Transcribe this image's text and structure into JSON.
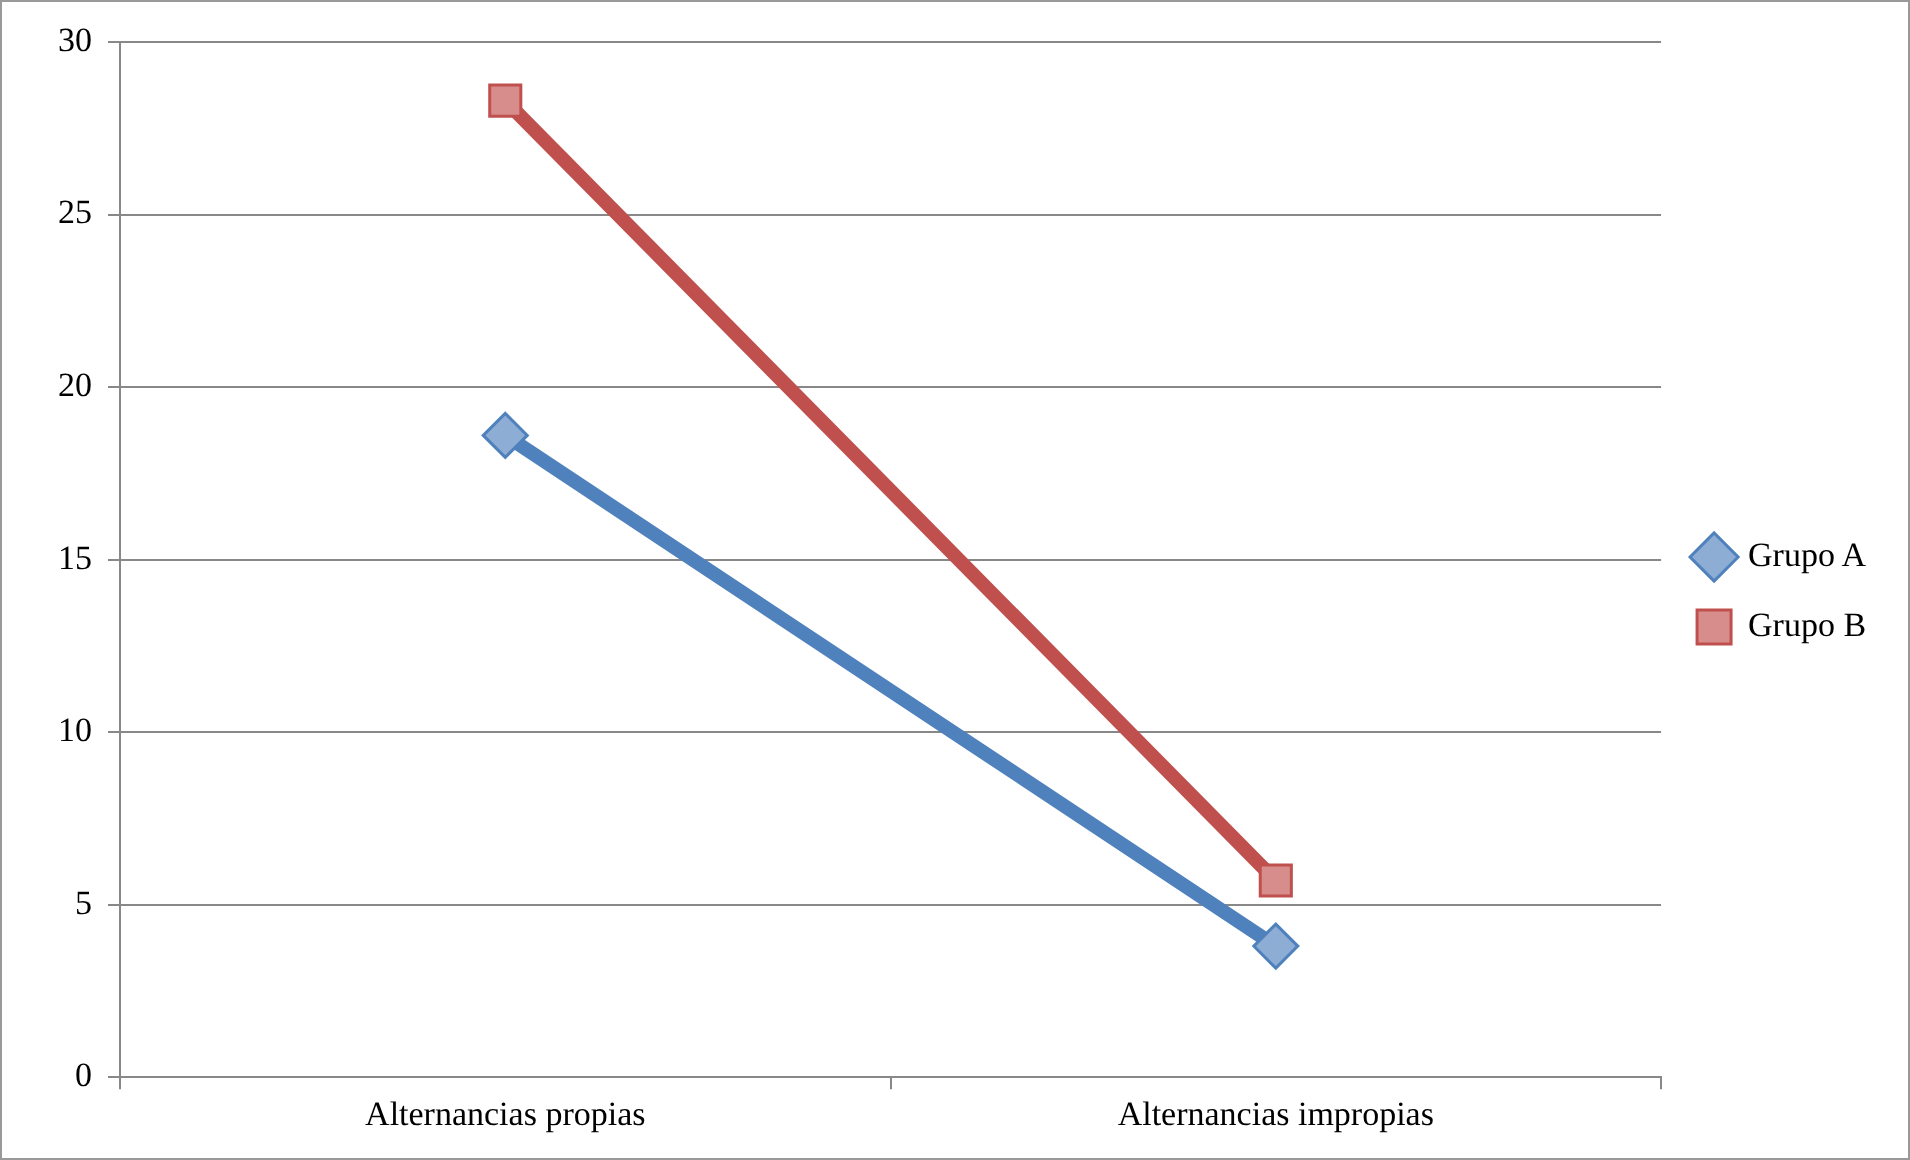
{
  "chart_data": {
    "type": "line",
    "categories": [
      "Alternancias propias",
      "Alternancias impropias"
    ],
    "series": [
      {
        "name": "Grupo A",
        "color": "#4f81bd",
        "values": [
          18.6,
          3.8
        ],
        "marker": "diamond"
      },
      {
        "name": "Grupo B",
        "color": "#c0504d",
        "values": [
          28.3,
          5.7
        ],
        "marker": "square"
      }
    ],
    "ylim": [
      0,
      30
    ],
    "yticks": [
      0,
      5,
      10,
      15,
      20,
      25,
      30
    ],
    "grid": "y",
    "legend": "right"
  }
}
